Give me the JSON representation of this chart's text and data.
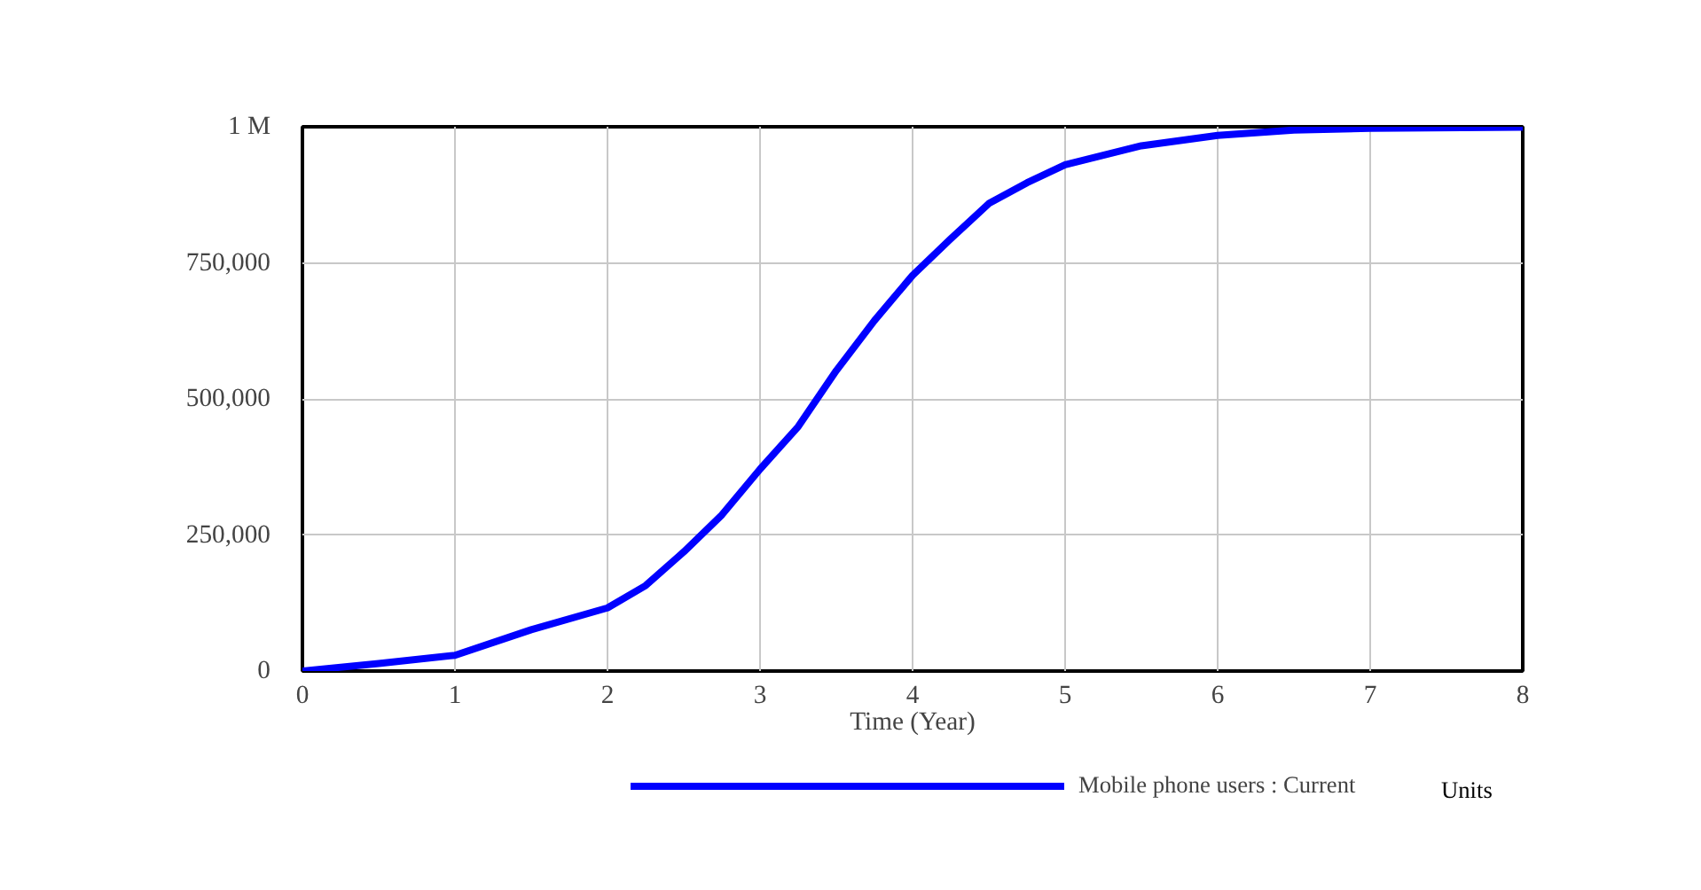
{
  "chart_data": {
    "type": "line",
    "xlabel": "Time (Year)",
    "x": [
      0,
      0.5,
      1,
      1.5,
      2,
      2.25,
      2.5,
      2.75,
      3,
      3.25,
      3.5,
      3.75,
      4,
      4.25,
      4.5,
      4.75,
      5,
      5.5,
      6,
      6.5,
      7,
      8
    ],
    "series": [
      {
        "name": "Mobile phone users : Current",
        "color": "#0000ff",
        "values": [
          0,
          14000,
          29000,
          76000,
          116000,
          157000,
          219000,
          287000,
          371000,
          449000,
          552000,
          644000,
          727000,
          794000,
          859000,
          897000,
          930000,
          965000,
          984000,
          994000,
          997000,
          999000
        ]
      }
    ],
    "xlim": [
      0,
      8
    ],
    "xticks": [
      0,
      1,
      2,
      3,
      4,
      5,
      6,
      7,
      8
    ],
    "ylim": [
      0,
      1000000
    ],
    "yticks": [
      {
        "value": 0,
        "label": "0"
      },
      {
        "value": 250000,
        "label": "250,000"
      },
      {
        "value": 500000,
        "label": "500,000"
      },
      {
        "value": 750000,
        "label": "750,000"
      },
      {
        "value": 1000000,
        "label": "1 M"
      }
    ],
    "grid": true,
    "legend": "bottom",
    "marker": "none",
    "line_style": "solid",
    "annotations": [
      "Units"
    ]
  }
}
